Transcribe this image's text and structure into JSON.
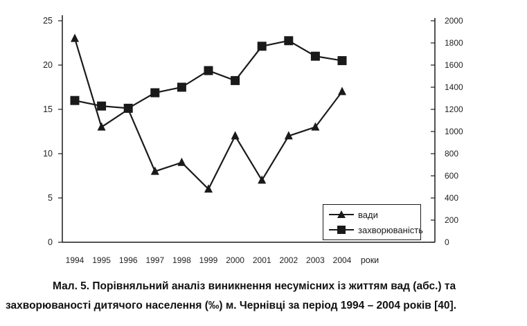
{
  "chart_data": {
    "type": "line",
    "categories": [
      "1994",
      "1995",
      "1996",
      "1997",
      "1998",
      "1999",
      "2000",
      "2001",
      "2002",
      "2003",
      "2004"
    ],
    "x_suffix_label": "роки",
    "series": [
      {
        "name": "вади",
        "axis": "left",
        "marker": "triangle",
        "values": [
          23,
          13,
          15,
          8,
          9,
          6,
          12,
          7,
          12,
          13,
          17
        ]
      },
      {
        "name": "захворюваність",
        "axis": "right",
        "marker": "square",
        "values": [
          1280,
          1230,
          1210,
          1350,
          1400,
          1550,
          1460,
          1770,
          1820,
          1680,
          1640
        ]
      }
    ],
    "left_axis": {
      "ylim": [
        0,
        25
      ],
      "ticks": [
        "0",
        "5",
        "10",
        "15",
        "20",
        "25"
      ]
    },
    "right_axis": {
      "ylim": [
        0,
        2000
      ],
      "ticks": [
        "0",
        "200",
        "400",
        "600",
        "800",
        "1000",
        "1200",
        "1400",
        "1600",
        "1800",
        "2000"
      ]
    },
    "legend_position": "bottom-right",
    "grid": false,
    "line_color": "#1a1a1a"
  },
  "caption": {
    "line1": "Мал. 5. Порівняльний аналіз виникнення несумісних із життям  вад (абс.) та",
    "line2": "захворюваності дитячого населення (‰) м. Чернівці за період 1994 – 2004 років [40]."
  }
}
